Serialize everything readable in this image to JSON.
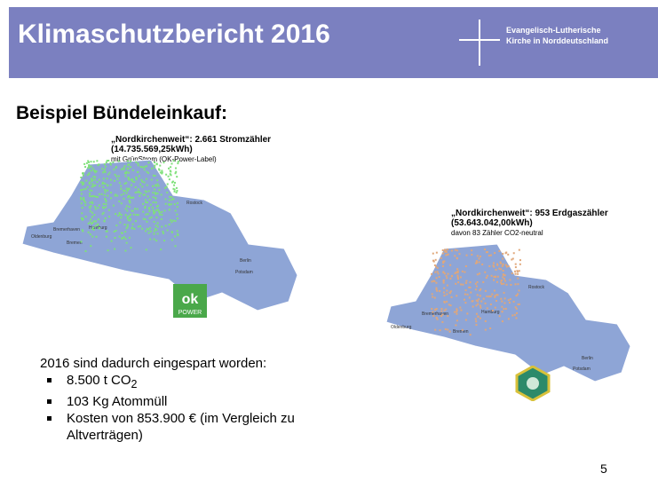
{
  "header": {
    "title": "Klimaschutzbericht 2016",
    "org": [
      "Evangelisch-Lutherische",
      "Kirche in Norddeutschland"
    ]
  },
  "heading": "Beispiel Bündeleinkauf:",
  "electricity": {
    "lines": [
      "„Nordkirchenweit“: 2.661 Stromzähler",
      "(14.735.569,25kWh)",
      "mit GrünStrom (OK-Power-Label)"
    ],
    "cities": [
      "Hamburg",
      "Bremen",
      "Berlin",
      "Oldenburg",
      "Bremerhaven",
      "Rostock",
      "Potsdam"
    ],
    "logo": [
      "ok",
      "POWER"
    ]
  },
  "gas": {
    "lines": [
      "„Nordkirchenweit“: 953 Erdgaszähler",
      "(53.643.042,00kWh)",
      "davon 83 Zähler CO2-neutral"
    ],
    "cities": [
      "Hamburg",
      "Bremen",
      "Berlin",
      "Oldenburg",
      "Bremerhaven",
      "Rostock",
      "Potsdam"
    ]
  },
  "savings": {
    "intro": "2016 sind dadurch eingespart worden:",
    "items": [
      {
        "text": "8.500 t CO",
        "sub": "2"
      },
      {
        "text": "103 Kg Atommüll"
      },
      {
        "text": "Kosten von 853.900 € (im Vergleich zu Altverträgen)"
      }
    ]
  },
  "page_number": "5"
}
